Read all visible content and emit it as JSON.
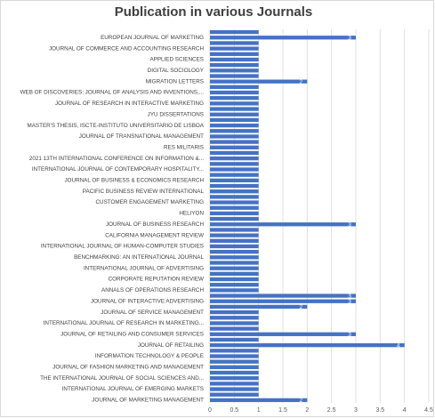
{
  "chart_data": {
    "type": "bar",
    "orientation": "horizontal",
    "title": "Publication in various Journals",
    "categories": [
      null,
      "EUROPEAN JOURNAL OF MARKETING",
      null,
      "JOURNAL OF COMMERCE AND ACCOUNTING RESEARCH",
      null,
      "APPLIED SCIENCES",
      null,
      "DIGITAL SOCIOLOGY",
      null,
      "MIGRATION LETTERS",
      null,
      "WEB OF DISCOVERIES: JOURNAL OF ANALYSIS AND INVENTIONS,...",
      null,
      "JOURNAL OF RESEARCH IN INTERACTIVE MARKETING",
      null,
      "JYU DISSERTATIONS",
      null,
      "MASTER'S THESIS, ISCTE-INSTITUTO UNIVERSITARIO DE LISBOA",
      null,
      "JOURNAL OF TRANSNATIONAL MANAGEMENT",
      null,
      "RES MILITARIS",
      null,
      "2021 13TH INTERNATIONAL CONFERENCE ON INFORMATION &...",
      null,
      "INTERNATIONAL JOURNAL OF CONTEMPORARY HOSPITALITY...",
      null,
      "JOURNAL OF BUSINESS & ECONOMICS RESEARCH",
      null,
      "PACIFIC BUSINESS REVIEW INTERNATIONAL",
      null,
      "CUSTOMER ENGAGEMENT MARKETING",
      null,
      "HELIYON",
      null,
      "JOURNAL OF BUSINESS RESEARCH",
      null,
      "CALIFORNIA MANAGEMENT REVIEW",
      null,
      "INTERNATIONAL JOURNAL OF HUMAN-COMPUTER STUDIES",
      null,
      "BENCHMARKING: AN INTERNATIONAL JOURNAL",
      null,
      "INTERNATIONAL JOURNAL OF ADVERTISING",
      null,
      "CORPORATE REPUTATION REVIEW",
      null,
      "ANNALS OF OPERATIONS RESEARCH",
      null,
      "JOURNAL OF INTERACTIVE ADVERTISING",
      null,
      "JOURNAL OF SERVICE MANAGEMENT",
      null,
      "INTERNATIONAL JOURNAL OF RESEARCH IN MARKETING...",
      null,
      "JOURNAL OF RETAILING AND CONSUMER SERVICES",
      null,
      "JOURNAL OF RETAILING",
      null,
      "INFORMATION TECHNOLOGY & PEOPLE",
      null,
      "JOURNAL OF FASHION MARKETING AND MANAGEMENT",
      null,
      "THE INTERNATIONAL JOURNAL OF SOCIAL SCIENCES AND...",
      null,
      "INTERNATIONAL JOURNAL OF EMERGING MARKETS",
      null,
      "JOURNAL OF MARKETING MANAGEMENT"
    ],
    "values": [
      1,
      3,
      1,
      1,
      1,
      1,
      1,
      1,
      1,
      2,
      1,
      1,
      1,
      1,
      1,
      1,
      1,
      1,
      1,
      1,
      1,
      1,
      1,
      1,
      1,
      1,
      1,
      1,
      1,
      1,
      1,
      1,
      1,
      1,
      1,
      3,
      1,
      1,
      1,
      1,
      1,
      1,
      1,
      1,
      1,
      1,
      1,
      1,
      3,
      3,
      2,
      1,
      1,
      1,
      1,
      3,
      1,
      4,
      1,
      1,
      1,
      1,
      1,
      1,
      1,
      1,
      1,
      2
    ],
    "color": "#4472c4",
    "xlim": [
      0,
      4.5
    ],
    "xticks": [
      0,
      0.5,
      1,
      1.5,
      2,
      2.5,
      3,
      3.5,
      4,
      4.5
    ],
    "grid": true
  }
}
